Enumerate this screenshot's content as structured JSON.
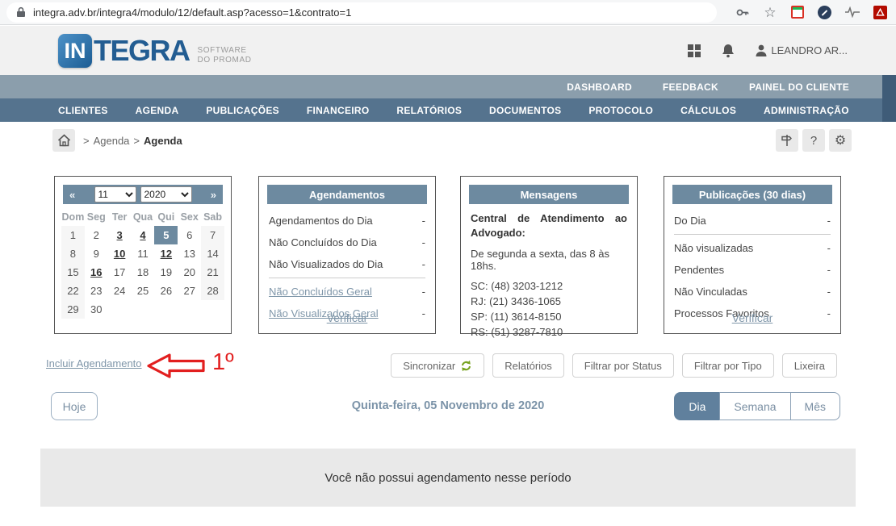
{
  "browser": {
    "url": "integra.adv.br/integra4/modulo/12/default.asp?acesso=1&contrato=1",
    "star_glyph": "☆"
  },
  "header": {
    "logo_in": "IN",
    "logo_tegra": "TEGRA",
    "logo_sub_line1": "SOFTWARE",
    "logo_sub_line2": "DO PROMAD",
    "user_name": "LEANDRO AR..."
  },
  "nav_secondary": {
    "items": [
      "DASHBOARD",
      "FEEDBACK",
      "PAINEL DO CLIENTE"
    ]
  },
  "nav_main": {
    "items": [
      "CLIENTES",
      "AGENDA",
      "PUBLICAÇÕES",
      "FINANCEIRO",
      "RELATÓRIOS",
      "DOCUMENTOS",
      "PROTOCOLO",
      "CÁLCULOS",
      "ADMINISTRAÇÃO"
    ]
  },
  "breadcrumb": {
    "separator1": ">",
    "parent": "Agenda",
    "separator2": ">",
    "current": "Agenda",
    "help_glyph": "?",
    "gear_glyph": "⚙"
  },
  "calendar": {
    "prev_label": "«",
    "next_label": "»",
    "month_value": "11",
    "year_value": "2020",
    "day_headers": [
      "Dom",
      "Seg",
      "Ter",
      "Qua",
      "Qui",
      "Sex",
      "Sab"
    ],
    "days": [
      {
        "d": "1"
      },
      {
        "d": "2"
      },
      {
        "d": "3",
        "marked": true
      },
      {
        "d": "4",
        "marked": true
      },
      {
        "d": "5",
        "selected": true
      },
      {
        "d": "6"
      },
      {
        "d": "7"
      },
      {
        "d": "8"
      },
      {
        "d": "9"
      },
      {
        "d": "10",
        "marked": true
      },
      {
        "d": "11"
      },
      {
        "d": "12",
        "marked": true
      },
      {
        "d": "13"
      },
      {
        "d": "14"
      },
      {
        "d": "15"
      },
      {
        "d": "16",
        "marked": true
      },
      {
        "d": "17"
      },
      {
        "d": "18"
      },
      {
        "d": "19"
      },
      {
        "d": "20"
      },
      {
        "d": "21"
      },
      {
        "d": "22"
      },
      {
        "d": "23"
      },
      {
        "d": "24"
      },
      {
        "d": "25"
      },
      {
        "d": "26"
      },
      {
        "d": "27"
      },
      {
        "d": "28"
      },
      {
        "d": "29"
      },
      {
        "d": "30"
      }
    ]
  },
  "panels": {
    "agendamentos": {
      "title": "Agendamentos",
      "rows": [
        {
          "label": "Agendamentos do Dia",
          "value": "-"
        },
        {
          "label": "Não Concluídos do Dia",
          "value": "-"
        },
        {
          "label": "Não Visualizados do Dia",
          "value": "-"
        },
        {
          "label": "Não Concluídos Geral",
          "value": "-",
          "link": true,
          "divider_before": true
        },
        {
          "label": "Não Visualizados Geral",
          "value": "-",
          "link": true
        }
      ],
      "footer_link": "Verificar"
    },
    "mensagens": {
      "title": "Mensagens",
      "heading": "Central de Atendimento ao Advogado:",
      "hours": "De segunda a sexta, das 8 às 18hs.",
      "phones": [
        "SC: (48) 3203-1212",
        "RJ: (21) 3436-1065",
        "SP: (11) 3614-8150",
        "RS: (51) 3287-7810"
      ]
    },
    "publicacoes": {
      "title": "Publicações (30 dias)",
      "rows": [
        {
          "label": "Do Dia",
          "value": "-"
        },
        {
          "label": "Não visualizadas",
          "value": "-",
          "divider_before": true
        },
        {
          "label": "Pendentes",
          "value": "-"
        },
        {
          "label": "Não Vinculadas",
          "value": "-"
        },
        {
          "label": "Processos Favoritos",
          "value": "-"
        }
      ],
      "footer_link": "Verificar"
    }
  },
  "actions": {
    "incluir_link": "Incluir Agendamento",
    "annotation_label": "1º",
    "buttons": [
      {
        "label": "Sincronizar",
        "icon": "refresh"
      },
      {
        "label": "Relatórios"
      },
      {
        "label": "Filtrar por Status"
      },
      {
        "label": "Filtrar por Tipo"
      },
      {
        "label": "Lixeira"
      }
    ]
  },
  "toolbar": {
    "hoje_label": "Hoje",
    "date_label": "Quinta-feira, 05 Novembro de 2020",
    "view_buttons": [
      {
        "label": "Dia",
        "active": true
      },
      {
        "label": "Semana"
      },
      {
        "label": "Mês"
      }
    ]
  },
  "empty_state": "Você não possui agendamento nesse período",
  "colors": {
    "nav_secondary_bg": "#8b9eac",
    "nav_main_bg": "#55738e",
    "panel_header_bg": "#6d8aa0",
    "link_color": "#7f96a9",
    "active_view_bg": "#60809d",
    "annotation_red": "#e21f1f",
    "sync_green": "#76a21e"
  }
}
